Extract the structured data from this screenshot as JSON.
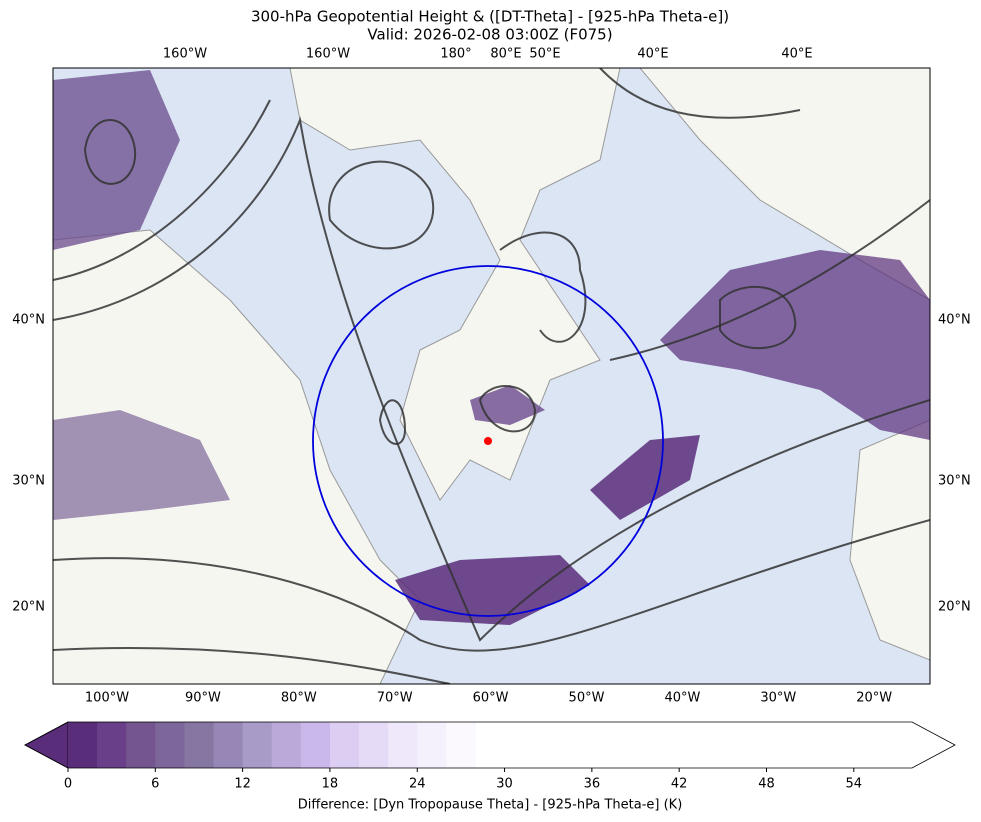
{
  "title": "300-hPa Geopotential Height & ([DT-Theta] - [925-hPa Theta-e])",
  "subtitle": "Valid: 2026-02-08 03:00Z (F075)",
  "map": {
    "top_labels": [
      "160°W",
      "160°W",
      "180°",
      "80°E",
      "50°E",
      "40°E",
      "40°E"
    ],
    "bottom_labels": [
      "100°W",
      "90°W",
      "80°W",
      "70°W",
      "60°W",
      "50°W",
      "40°W",
      "30°W",
      "20°W"
    ],
    "left_labels": [
      "40°N",
      "30°N",
      "20°N"
    ],
    "right_labels": [
      "40°N",
      "30°N",
      "20°N"
    ]
  },
  "colorbar": {
    "label": "Difference: [Dyn Tropopause Theta] - [925-hPa Theta-e] (K)",
    "lim": [
      0,
      58
    ],
    "ticks": [
      0,
      6,
      12,
      18,
      24,
      30,
      36,
      42,
      48,
      54
    ],
    "levels": [
      0,
      2,
      4,
      6,
      8,
      10,
      12,
      14,
      16,
      18,
      20,
      22,
      24,
      26,
      28
    ],
    "colors": [
      "#5a2d7a",
      "#683f88",
      "#745590",
      "#7d6699",
      "#8676a2",
      "#9787b6",
      "#a99bc8",
      "#bba9da",
      "#cbb8ea",
      "#dccdf3",
      "#e6dbf7",
      "#efe7fa",
      "#f5f1fc",
      "#fbf9fe"
    ],
    "under_color": "#5a2d7a",
    "over_color": "#ffffff"
  }
}
